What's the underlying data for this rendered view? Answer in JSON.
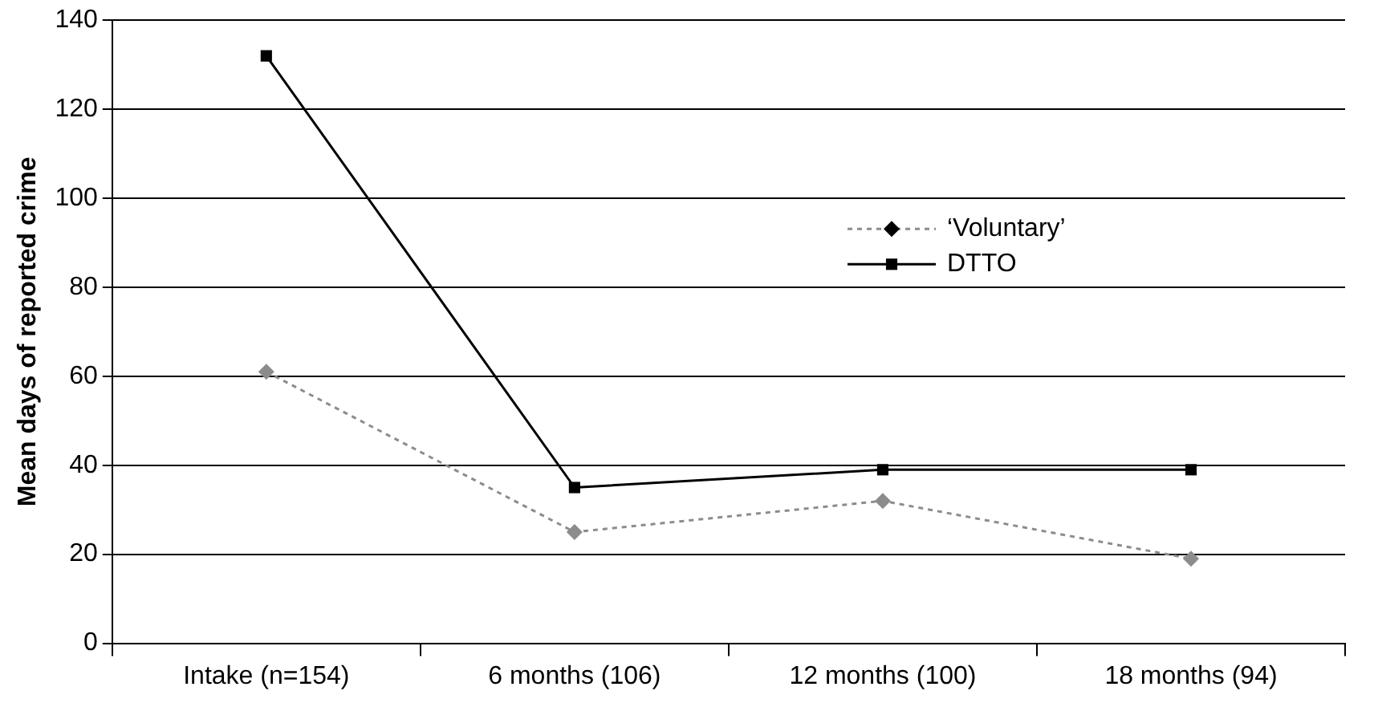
{
  "chart_data": {
    "type": "line",
    "ylabel": "Mean days of reported crime",
    "categories": [
      "Intake (n=154)",
      "6 months (106)",
      "12 months (100)",
      "18 months (94)"
    ],
    "series": [
      {
        "name": "‘Voluntary’",
        "color": "#8c8c8c",
        "values": [
          61,
          25,
          32,
          19
        ],
        "marker": "diamond",
        "line_style": "dotted"
      },
      {
        "name": "DTTO",
        "color": "#000000",
        "values": [
          132,
          35,
          39,
          39
        ],
        "marker": "square",
        "line_style": "solid"
      }
    ],
    "ylim": [
      0,
      140
    ],
    "yticks": [
      0,
      20,
      40,
      60,
      80,
      100,
      120,
      140
    ],
    "grid": "y",
    "legend": "right"
  }
}
